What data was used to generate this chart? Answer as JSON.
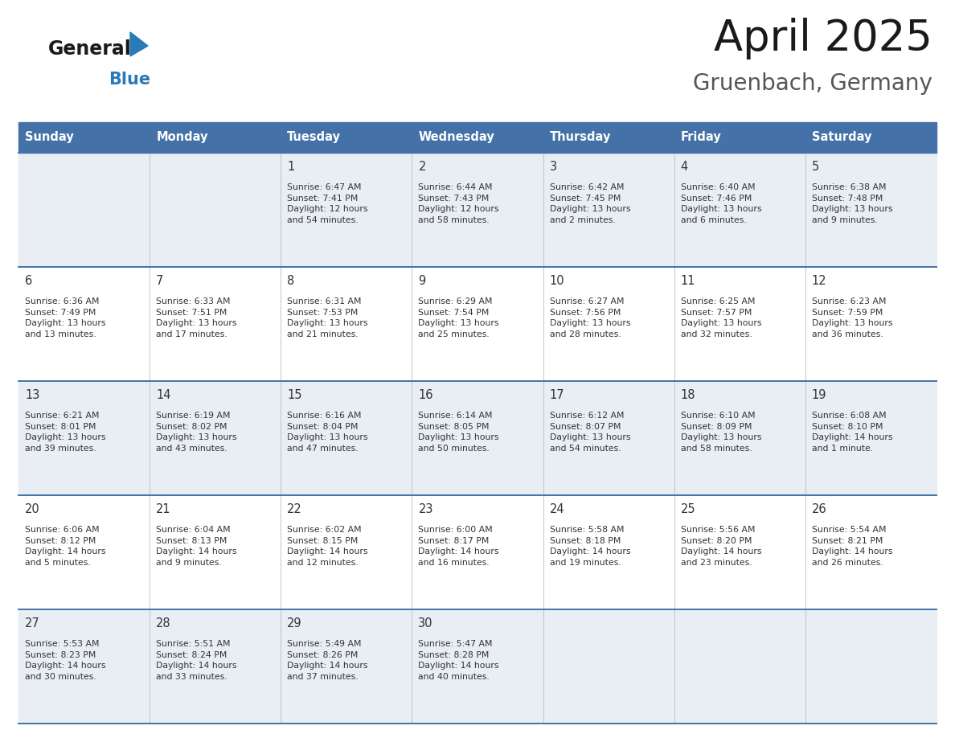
{
  "title": "April 2025",
  "subtitle": "Gruenbach, Germany",
  "header_bg": "#4472a8",
  "header_text_color": "#ffffff",
  "row_bg_light": "#e8eef4",
  "row_bg_white": "#ffffff",
  "separator_color": "#4472a8",
  "grid_color": "#bbbbbb",
  "day_names": [
    "Sunday",
    "Monday",
    "Tuesday",
    "Wednesday",
    "Thursday",
    "Friday",
    "Saturday"
  ],
  "weeks": [
    [
      {
        "day": "",
        "info": ""
      },
      {
        "day": "",
        "info": ""
      },
      {
        "day": "1",
        "info": "Sunrise: 6:47 AM\nSunset: 7:41 PM\nDaylight: 12 hours\nand 54 minutes."
      },
      {
        "day": "2",
        "info": "Sunrise: 6:44 AM\nSunset: 7:43 PM\nDaylight: 12 hours\nand 58 minutes."
      },
      {
        "day": "3",
        "info": "Sunrise: 6:42 AM\nSunset: 7:45 PM\nDaylight: 13 hours\nand 2 minutes."
      },
      {
        "day": "4",
        "info": "Sunrise: 6:40 AM\nSunset: 7:46 PM\nDaylight: 13 hours\nand 6 minutes."
      },
      {
        "day": "5",
        "info": "Sunrise: 6:38 AM\nSunset: 7:48 PM\nDaylight: 13 hours\nand 9 minutes."
      }
    ],
    [
      {
        "day": "6",
        "info": "Sunrise: 6:36 AM\nSunset: 7:49 PM\nDaylight: 13 hours\nand 13 minutes."
      },
      {
        "day": "7",
        "info": "Sunrise: 6:33 AM\nSunset: 7:51 PM\nDaylight: 13 hours\nand 17 minutes."
      },
      {
        "day": "8",
        "info": "Sunrise: 6:31 AM\nSunset: 7:53 PM\nDaylight: 13 hours\nand 21 minutes."
      },
      {
        "day": "9",
        "info": "Sunrise: 6:29 AM\nSunset: 7:54 PM\nDaylight: 13 hours\nand 25 minutes."
      },
      {
        "day": "10",
        "info": "Sunrise: 6:27 AM\nSunset: 7:56 PM\nDaylight: 13 hours\nand 28 minutes."
      },
      {
        "day": "11",
        "info": "Sunrise: 6:25 AM\nSunset: 7:57 PM\nDaylight: 13 hours\nand 32 minutes."
      },
      {
        "day": "12",
        "info": "Sunrise: 6:23 AM\nSunset: 7:59 PM\nDaylight: 13 hours\nand 36 minutes."
      }
    ],
    [
      {
        "day": "13",
        "info": "Sunrise: 6:21 AM\nSunset: 8:01 PM\nDaylight: 13 hours\nand 39 minutes."
      },
      {
        "day": "14",
        "info": "Sunrise: 6:19 AM\nSunset: 8:02 PM\nDaylight: 13 hours\nand 43 minutes."
      },
      {
        "day": "15",
        "info": "Sunrise: 6:16 AM\nSunset: 8:04 PM\nDaylight: 13 hours\nand 47 minutes."
      },
      {
        "day": "16",
        "info": "Sunrise: 6:14 AM\nSunset: 8:05 PM\nDaylight: 13 hours\nand 50 minutes."
      },
      {
        "day": "17",
        "info": "Sunrise: 6:12 AM\nSunset: 8:07 PM\nDaylight: 13 hours\nand 54 minutes."
      },
      {
        "day": "18",
        "info": "Sunrise: 6:10 AM\nSunset: 8:09 PM\nDaylight: 13 hours\nand 58 minutes."
      },
      {
        "day": "19",
        "info": "Sunrise: 6:08 AM\nSunset: 8:10 PM\nDaylight: 14 hours\nand 1 minute."
      }
    ],
    [
      {
        "day": "20",
        "info": "Sunrise: 6:06 AM\nSunset: 8:12 PM\nDaylight: 14 hours\nand 5 minutes."
      },
      {
        "day": "21",
        "info": "Sunrise: 6:04 AM\nSunset: 8:13 PM\nDaylight: 14 hours\nand 9 minutes."
      },
      {
        "day": "22",
        "info": "Sunrise: 6:02 AM\nSunset: 8:15 PM\nDaylight: 14 hours\nand 12 minutes."
      },
      {
        "day": "23",
        "info": "Sunrise: 6:00 AM\nSunset: 8:17 PM\nDaylight: 14 hours\nand 16 minutes."
      },
      {
        "day": "24",
        "info": "Sunrise: 5:58 AM\nSunset: 8:18 PM\nDaylight: 14 hours\nand 19 minutes."
      },
      {
        "day": "25",
        "info": "Sunrise: 5:56 AM\nSunset: 8:20 PM\nDaylight: 14 hours\nand 23 minutes."
      },
      {
        "day": "26",
        "info": "Sunrise: 5:54 AM\nSunset: 8:21 PM\nDaylight: 14 hours\nand 26 minutes."
      }
    ],
    [
      {
        "day": "27",
        "info": "Sunrise: 5:53 AM\nSunset: 8:23 PM\nDaylight: 14 hours\nand 30 minutes."
      },
      {
        "day": "28",
        "info": "Sunrise: 5:51 AM\nSunset: 8:24 PM\nDaylight: 14 hours\nand 33 minutes."
      },
      {
        "day": "29",
        "info": "Sunrise: 5:49 AM\nSunset: 8:26 PM\nDaylight: 14 hours\nand 37 minutes."
      },
      {
        "day": "30",
        "info": "Sunrise: 5:47 AM\nSunset: 8:28 PM\nDaylight: 14 hours\nand 40 minutes."
      },
      {
        "day": "",
        "info": ""
      },
      {
        "day": "",
        "info": ""
      },
      {
        "day": "",
        "info": ""
      }
    ]
  ],
  "logo_color_general": "#1a1a1a",
  "logo_color_blue": "#2a7ab8",
  "logo_triangle_color": "#2a7ab8",
  "title_color": "#1a1a1a",
  "subtitle_color": "#555555",
  "cell_text_color": "#333333",
  "cell_day_color": "#333333",
  "fig_width": 11.88,
  "fig_height": 9.18,
  "dpi": 100
}
